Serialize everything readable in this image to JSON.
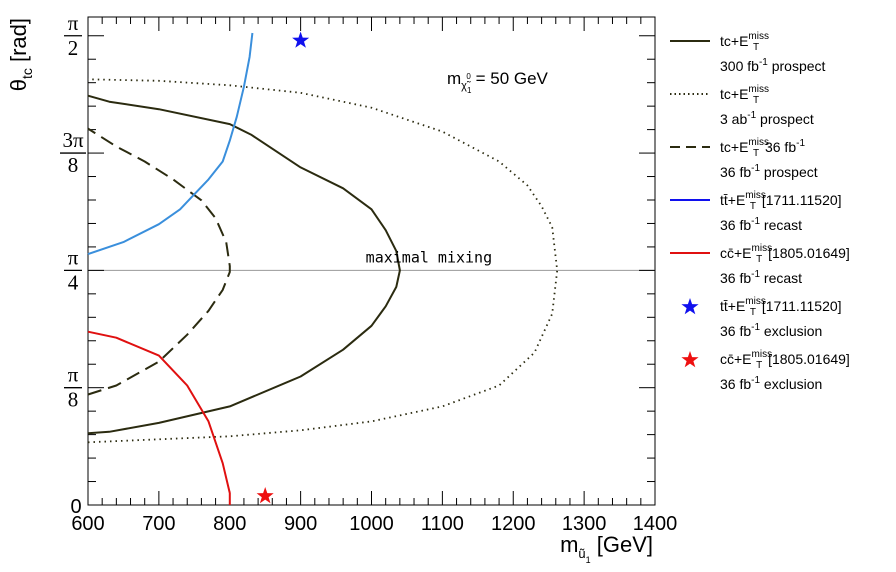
{
  "chart_data": {
    "type": "line",
    "title": "",
    "xlabel": {
      "main": "m",
      "sub": "ũ",
      "subsub": "1",
      "unit": " [GeV]"
    },
    "ylabel": {
      "main": "θ",
      "sub": "tc",
      "unit": " [rad]"
    },
    "xlim": [
      600,
      1400
    ],
    "ylim": [
      0,
      1.6336
    ],
    "x_ticks": [
      600,
      700,
      800,
      900,
      1000,
      1100,
      1200,
      1300,
      1400
    ],
    "y_ticks": [
      {
        "value": 0,
        "label": "0"
      },
      {
        "value": 0.3927,
        "num": "π",
        "den": "8"
      },
      {
        "value": 0.7854,
        "num": "π",
        "den": "4"
      },
      {
        "value": 1.1781,
        "num": "3π",
        "den": "8"
      },
      {
        "value": 1.5708,
        "num": "π",
        "den": "2"
      }
    ],
    "annotation_mass": {
      "text": "m",
      "sub": "χ̃",
      "subsub": "1",
      "sup": "0",
      "value": " = 50 GeV"
    },
    "annotation_mixing": {
      "text": "maximal mixing",
      "x": 1020,
      "y": 0.7854
    },
    "mixing_line_y": 0.7854,
    "series": [
      {
        "name": "tc+E_T^miss 300 fb-1 prospect",
        "style": "solid",
        "color": "#2b2b10",
        "x": [
          600,
          630,
          700,
          800,
          900,
          960,
          1000,
          1020,
          1035,
          1040,
          1035,
          1020,
          1000,
          960,
          900,
          830,
          800,
          700,
          630,
          600
        ],
        "y": [
          0.24,
          0.245,
          0.275,
          0.33,
          0.43,
          0.52,
          0.6,
          0.665,
          0.73,
          0.7854,
          0.85,
          0.92,
          0.99,
          1.06,
          1.13,
          1.24,
          1.275,
          1.325,
          1.35,
          1.37
        ]
      },
      {
        "name": "tc+E_T^miss 3 ab-1 prospect",
        "style": "dotted",
        "color": "#2b2b10",
        "x": [
          600,
          700,
          800,
          900,
          1000,
          1100,
          1180,
          1230,
          1255,
          1262,
          1255,
          1240,
          1220,
          1180,
          1100,
          1000,
          900,
          800,
          700,
          600
        ],
        "y": [
          0.21,
          0.22,
          0.23,
          0.25,
          0.28,
          0.33,
          0.4,
          0.51,
          0.64,
          0.7854,
          0.93,
          1.0,
          1.07,
          1.15,
          1.25,
          1.33,
          1.38,
          1.405,
          1.42,
          1.425
        ]
      },
      {
        "name": "tc+E_T^miss 36 fb-1 prospect",
        "style": "dashed",
        "color": "#2b2b10",
        "x": [
          600,
          640,
          700,
          740,
          770,
          790,
          800,
          800,
          795,
          780,
          760,
          720,
          680,
          640,
          600
        ],
        "y": [
          0.37,
          0.4,
          0.48,
          0.57,
          0.65,
          0.72,
          0.78,
          0.8,
          0.88,
          0.96,
          1.02,
          1.09,
          1.15,
          1.2,
          1.26
        ]
      },
      {
        "name": "tt̄+E_T^miss [1711.11520] 36 fb-1 recast",
        "style": "solid",
        "color": "#3a8fdc",
        "x": [
          600,
          650,
          700,
          730,
          750,
          770,
          790,
          800,
          810,
          820,
          828,
          832
        ],
        "y": [
          0.84,
          0.88,
          0.94,
          0.99,
          1.04,
          1.09,
          1.15,
          1.22,
          1.3,
          1.4,
          1.5,
          1.58
        ]
      },
      {
        "name": "cc̄+E_T^miss [1805.01649] 36 fb-1 recast",
        "style": "solid",
        "color": "#e01010",
        "x": [
          600,
          640,
          700,
          740,
          770,
          790,
          800,
          800
        ],
        "y": [
          0.58,
          0.56,
          0.5,
          0.4,
          0.28,
          0.14,
          0.04,
          0.0
        ]
      }
    ],
    "markers": [
      {
        "name": "tt̄+E_T^miss [1711.11520] 36 fb-1 exclusion",
        "x": 900,
        "y": 1.555,
        "color": "#1010ee"
      },
      {
        "name": "cc̄+E_T^miss [1805.01649] 36 fb-1 exclusion",
        "x": 850,
        "y": 0.03,
        "color": "#ee1010"
      }
    ],
    "legend": {
      "position": "right",
      "entries": [
        {
          "symbol": "solid-dark",
          "l1": {
            "pre": "tc+E",
            "sub": "T",
            "sup": "miss",
            "post": ""
          },
          "l2": {
            "pre": "300 fb",
            "sup": "-1",
            "post": " prospect"
          }
        },
        {
          "symbol": "dotted-dark",
          "l1": {
            "pre": "tc+E",
            "sub": "T",
            "sup": "miss",
            "post": ""
          },
          "l2": {
            "pre": "3 ab",
            "sup": "-1",
            "post": " prospect"
          }
        },
        {
          "symbol": "dashed-dark",
          "l1": {
            "pre": "tc+E",
            "sub": "T",
            "sup": "miss",
            "post": " 36 fb",
            "sup2": "-1"
          },
          "l2": {
            "pre": "36 fb",
            "sup": "-1",
            "post": " prospect"
          }
        },
        {
          "symbol": "solid-blue",
          "l1": {
            "pre": "tt̄+E",
            "sub": "T",
            "sup": "miss",
            "post": " [1711.11520]"
          },
          "l2": {
            "pre": "36 fb",
            "sup": "-1",
            "post": " recast"
          }
        },
        {
          "symbol": "solid-red",
          "l1": {
            "pre": "cc̄+E",
            "sub": "T",
            "sup": "miss",
            "post": " [1805.01649]"
          },
          "l2": {
            "pre": "36 fb",
            "sup": "-1",
            "post": " recast"
          }
        },
        {
          "symbol": "star-blue",
          "l1": {
            "pre": "tt̄+E",
            "sub": "T",
            "sup": "miss",
            "post": " [1711.11520]"
          },
          "l2": {
            "pre": "36 fb",
            "sup": "-1",
            "post": " exclusion"
          }
        },
        {
          "symbol": "star-red",
          "l1": {
            "pre": "cc̄+E",
            "sub": "T",
            "sup": "miss",
            "post": " [1805.01649]"
          },
          "l2": {
            "pre": "36 fb",
            "sup": "-1",
            "post": " exclusion"
          }
        }
      ]
    },
    "colors": {
      "dark": "#2b2b10",
      "blue_line": "#3a8fdc",
      "red_line": "#e01010",
      "blue_star": "#1010ee",
      "red_star": "#ee1010",
      "mixing_line": "#999999"
    },
    "grid": false
  }
}
